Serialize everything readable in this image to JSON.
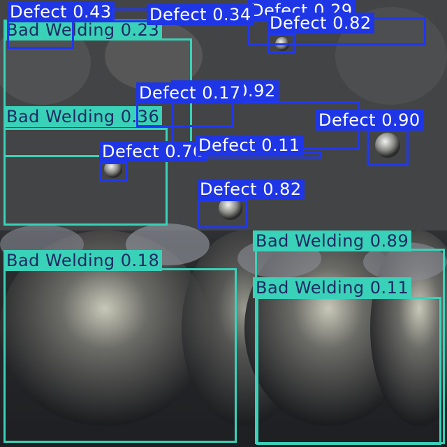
{
  "colors": {
    "bad_welding_box": "#3ad1b9",
    "defect_box": "#2038f0",
    "bad_welding_text": "#1e2a63",
    "defect_text": "#ffffff"
  },
  "detections": [
    {
      "cls": "bad",
      "label": "Bad Welding 0.89"
    },
    {
      "cls": "bad",
      "label": "Bad Welding 0.11"
    },
    {
      "cls": "bad",
      "label": "Bad Welding 0.18"
    },
    {
      "cls": "bad",
      "label": "Bad Welding 0.36"
    },
    {
      "cls": "bad",
      "label": "Bad Welding 0.23"
    },
    {
      "cls": "def",
      "label": "Defect 0.43"
    },
    {
      "cls": "def",
      "label": "Defect 0.29"
    },
    {
      "cls": "def",
      "label": "Defect 0.82"
    },
    {
      "cls": "def",
      "label": "Defect 0.92"
    },
    {
      "cls": "def",
      "label": "Defect 0.90"
    },
    {
      "cls": "def",
      "label": "Defect 0.76"
    },
    {
      "cls": "def",
      "label": "Defect 0.82"
    },
    {
      "cls": "def",
      "label": "Defect 0.11"
    },
    {
      "cls": "def",
      "label": "Defect 0.17"
    },
    {
      "cls": "def",
      "label": "Defect 0.34"
    }
  ]
}
